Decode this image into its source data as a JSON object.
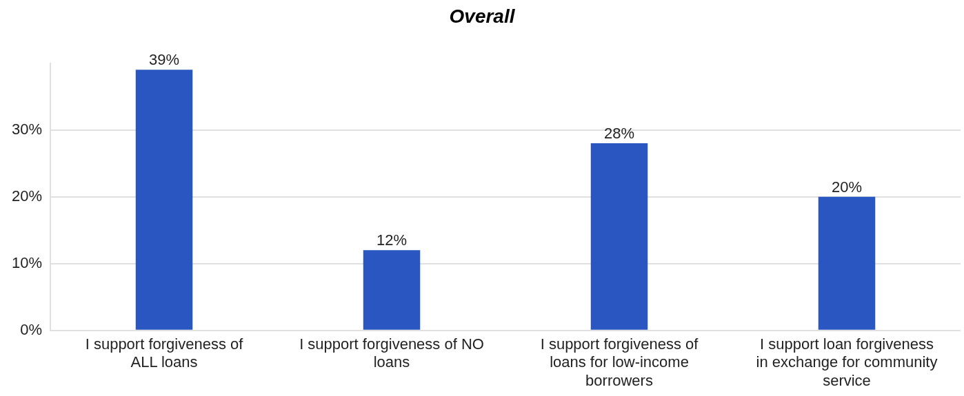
{
  "chart_data": {
    "type": "bar",
    "title": "Overall",
    "categories": [
      "I support forgiveness of ALL loans",
      "I support forgiveness of NO loans",
      "I support forgiveness of loans for low-income borrowers",
      "I support loan forgiveness in exchange for community service"
    ],
    "values": [
      39,
      12,
      28,
      20
    ],
    "value_labels": [
      "39%",
      "12%",
      "28%",
      "20%"
    ],
    "color": "#2a56c1",
    "ylim": [
      0,
      40
    ],
    "yticks": [
      {
        "value": 0,
        "label": "0%"
      },
      {
        "value": 10,
        "label": "10%"
      },
      {
        "value": 20,
        "label": "20%"
      },
      {
        "value": 30,
        "label": "30%"
      }
    ],
    "grid": "y",
    "legend": false
  }
}
